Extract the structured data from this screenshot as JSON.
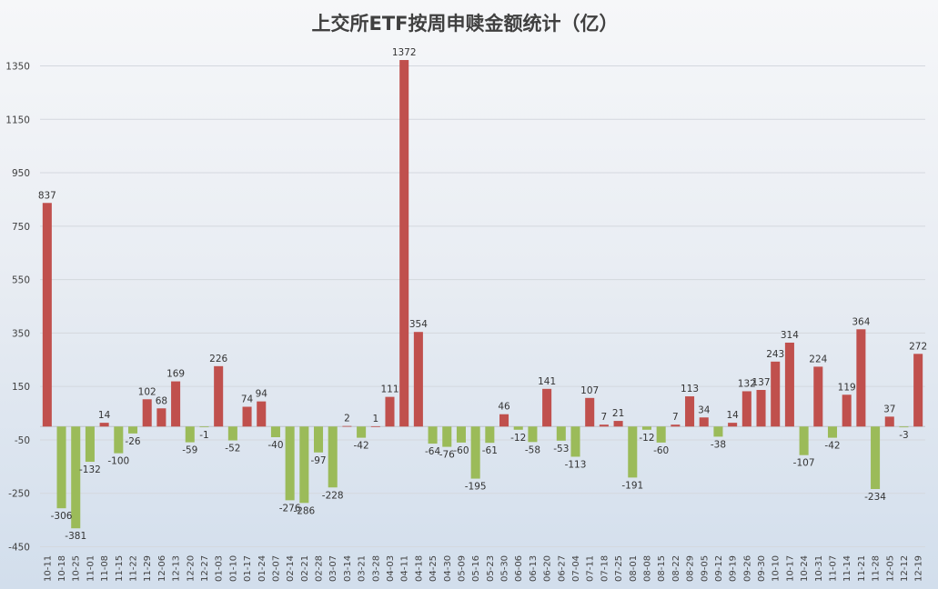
{
  "chart_data": {
    "type": "bar",
    "title": "上交所ETF按周申赎金额统计（亿）",
    "xlabel": "",
    "ylabel": "",
    "ylim": [
      -450,
      1450
    ],
    "yticks": [
      1350,
      1150,
      950,
      750,
      550,
      350,
      150,
      -50,
      -250,
      -450
    ],
    "grid": true,
    "legend": "none",
    "colors": {
      "positive": "#c0504d",
      "negative": "#9bbb59"
    },
    "categories": [
      "10-11",
      "10-18",
      "10-25",
      "11-01",
      "11-08",
      "11-15",
      "11-22",
      "11-29",
      "12-06",
      "12-13",
      "12-20",
      "12-27",
      "01-03",
      "01-10",
      "01-17",
      "01-24",
      "02-07",
      "02-14",
      "02-21",
      "02-28",
      "03-07",
      "03-14",
      "03-21",
      "03-28",
      "04-03",
      "04-11",
      "04-18",
      "04-25",
      "04-30",
      "05-09",
      "05-16",
      "05-23",
      "05-30",
      "06-06",
      "06-13",
      "06-20",
      "06-27",
      "07-04",
      "07-11",
      "07-18",
      "07-25",
      "08-01",
      "08-08",
      "08-15",
      "08-22",
      "08-29",
      "09-05",
      "09-12",
      "09-19",
      "09-26",
      "09-30",
      "10-10",
      "10-17",
      "10-24",
      "10-31",
      "11-07",
      "11-14",
      "11-21",
      "11-28",
      "12-05",
      "12-12",
      "12-19"
    ],
    "values": [
      837,
      -306,
      -381,
      -132,
      14,
      -100,
      -26,
      102,
      68,
      169,
      -59,
      -1,
      226,
      -52,
      74,
      94,
      -40,
      -276,
      -286,
      -97,
      -228,
      2,
      -42,
      1,
      111,
      1372,
      354,
      -64,
      -76,
      -60,
      -195,
      -61,
      46,
      -12,
      -58,
      141,
      -53,
      -113,
      107,
      7,
      21,
      -191,
      -12,
      -60,
      7,
      113,
      34,
      -38,
      14,
      132,
      137,
      243,
      314,
      -107,
      224,
      -42,
      119,
      364,
      -234,
      37,
      -3,
      272
    ]
  }
}
